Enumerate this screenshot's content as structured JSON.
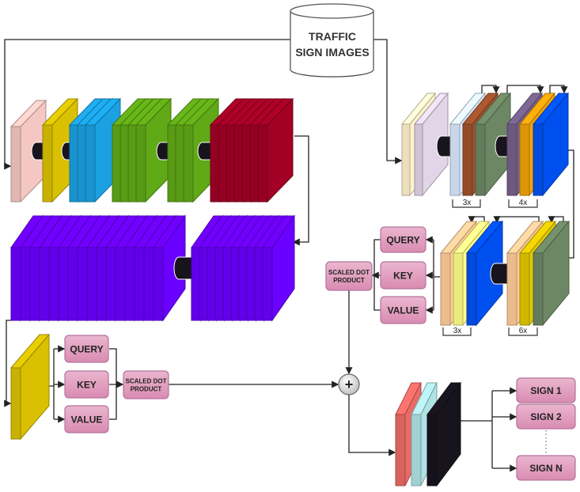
{
  "database": {
    "line1": "TRAFFIC",
    "line2": "SIGN IMAGES"
  },
  "left_attention": {
    "query": "QUERY",
    "key": "KEY",
    "value": "VALUE",
    "sdp_line1": "SCALED DOT",
    "sdp_line2": "PRODUCT"
  },
  "right_attention": {
    "query": "QUERY",
    "key": "KEY",
    "value": "VALUE",
    "sdp_line1": "SCALED DOT",
    "sdp_line2": "PRODUCT"
  },
  "repeat_labels": {
    "r1": "3x",
    "r2": "4x",
    "r3": "3x",
    "r4": "6x"
  },
  "add_symbol": "+",
  "outputs": {
    "sign1": "SIGN 1",
    "sign2": "SIGN 2",
    "signN": "SIGN N"
  },
  "colors": {
    "pink": "#f4c7c3",
    "yellow": "#d9c000",
    "skyblue": "#1ba1e2",
    "green": "#60a917",
    "crimson": "#a20025",
    "violet": "#6a00ff",
    "cream": "#fff2cc",
    "lavender": "#e1d5e7",
    "lightblue": "#dae8fc",
    "brown": "#a0522d",
    "olive": "#6d8764",
    "purple": "#76608a",
    "orange": "#f0a30a",
    "blue": "#0050ef",
    "peach": "#ffcc99",
    "lightyellow": "#ffff88",
    "gold": "#e3c800",
    "coral": "#ea6b66",
    "cyan": "#b0e3e6",
    "black": "#18141d",
    "box_fill": "#e6a8c6",
    "box_stroke": "#b5739d"
  }
}
